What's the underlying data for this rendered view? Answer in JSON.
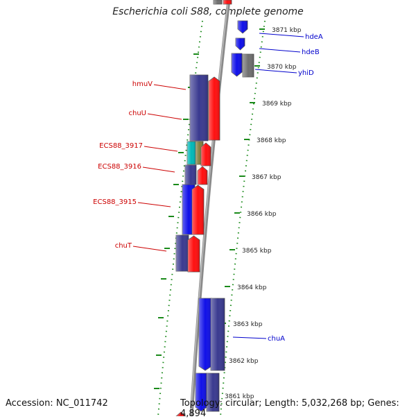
{
  "title": "Escherichia coli S88, complete genome",
  "footer": {
    "accession": "Accession: NC_011742",
    "topology": "Topology: circular; Length: 5,032,268 bp; Genes: 4,894"
  },
  "colors": {
    "backbone": "#8a8a8a",
    "tick": "#1a8a1a",
    "forward_gene": "#ff1010",
    "reverse_gene": "#1010e8",
    "reverse_gene_dark": "#3a3a90",
    "other_gene": "#707070",
    "teal_gene": "#00b8b8",
    "olive_gene": "#808040",
    "left_label": "#cc0000",
    "right_label": "#0000cc"
  },
  "kbp_ticks": [
    "3871 kbp",
    "3870 kbp",
    "3869 kbp",
    "3868 kbp",
    "3867 kbp",
    "3866 kbp",
    "3865 kbp",
    "3864 kbp",
    "3863 kbp",
    "3862 kbp",
    "3861 kbp"
  ],
  "left_genes": [
    {
      "label": "hmuV"
    },
    {
      "label": "chuU"
    },
    {
      "label": "ECS88_3917"
    },
    {
      "label": "ECS88_3916"
    },
    {
      "label": "ECS88_3915"
    },
    {
      "label": "chuT"
    }
  ],
  "right_genes": [
    {
      "label": "hdeA"
    },
    {
      "label": "hdeB"
    },
    {
      "label": "yhiD"
    },
    {
      "label": "chuA"
    }
  ]
}
